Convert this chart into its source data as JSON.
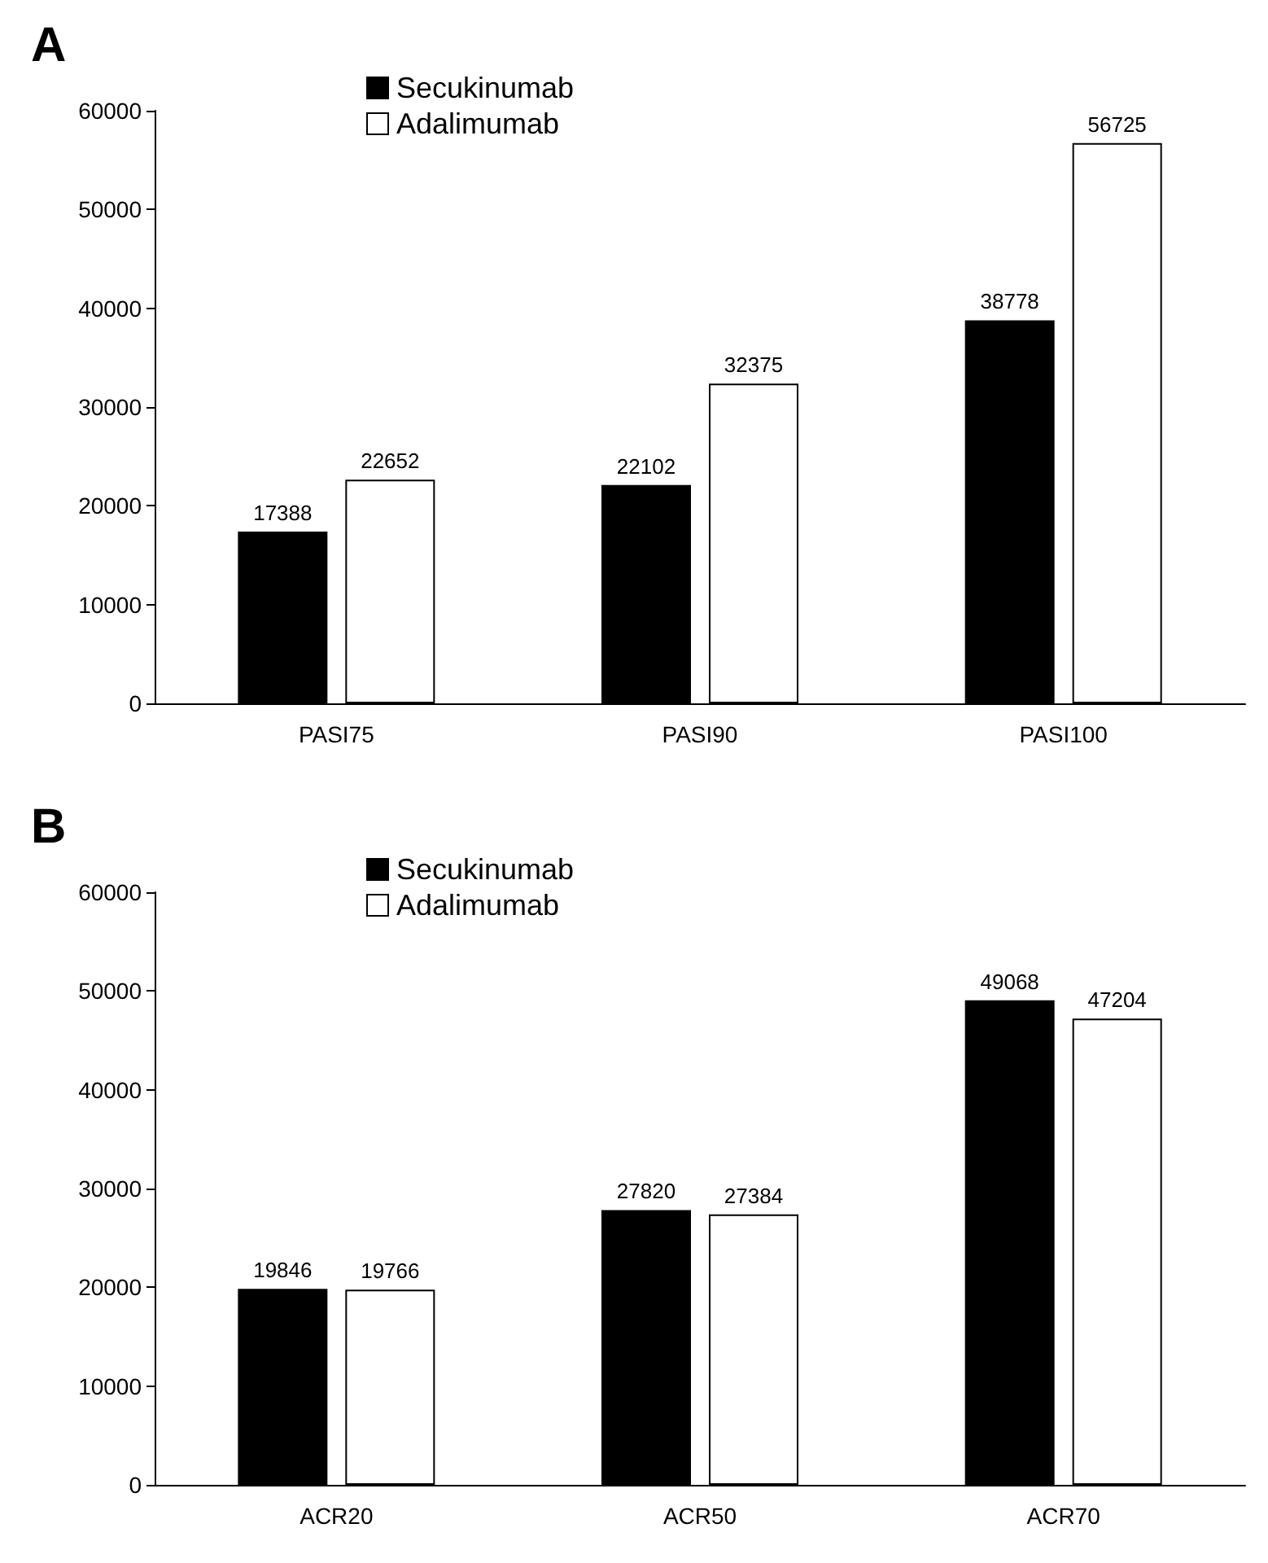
{
  "chart_data": [
    {
      "type": "bar",
      "title": "A",
      "categories": [
        "PASI75",
        "PASI90",
        "PASI100"
      ],
      "series": [
        {
          "name": "Secukinumab",
          "color": "#000000",
          "values": [
            17388,
            22102,
            38778
          ]
        },
        {
          "name": "Adalimumab",
          "color": "#ffffff",
          "values": [
            22652,
            32375,
            56725
          ]
        }
      ],
      "ylim": [
        0,
        60000
      ],
      "yticks": [
        0,
        10000,
        20000,
        30000,
        40000,
        50000,
        60000
      ],
      "grid": false,
      "legend": "top left",
      "data_labels": true
    },
    {
      "type": "bar",
      "title": "B",
      "categories": [
        "ACR20",
        "ACR50",
        "ACR70"
      ],
      "series": [
        {
          "name": "Secukinumab",
          "color": "#000000",
          "values": [
            19846,
            27820,
            49068
          ]
        },
        {
          "name": "Adalimumab",
          "color": "#ffffff",
          "values": [
            19766,
            27384,
            47204
          ]
        }
      ],
      "ylim": [
        0,
        60000
      ],
      "yticks": [
        0,
        10000,
        20000,
        30000,
        40000,
        50000,
        60000
      ],
      "grid": false,
      "legend": "top left",
      "data_labels": true
    }
  ]
}
